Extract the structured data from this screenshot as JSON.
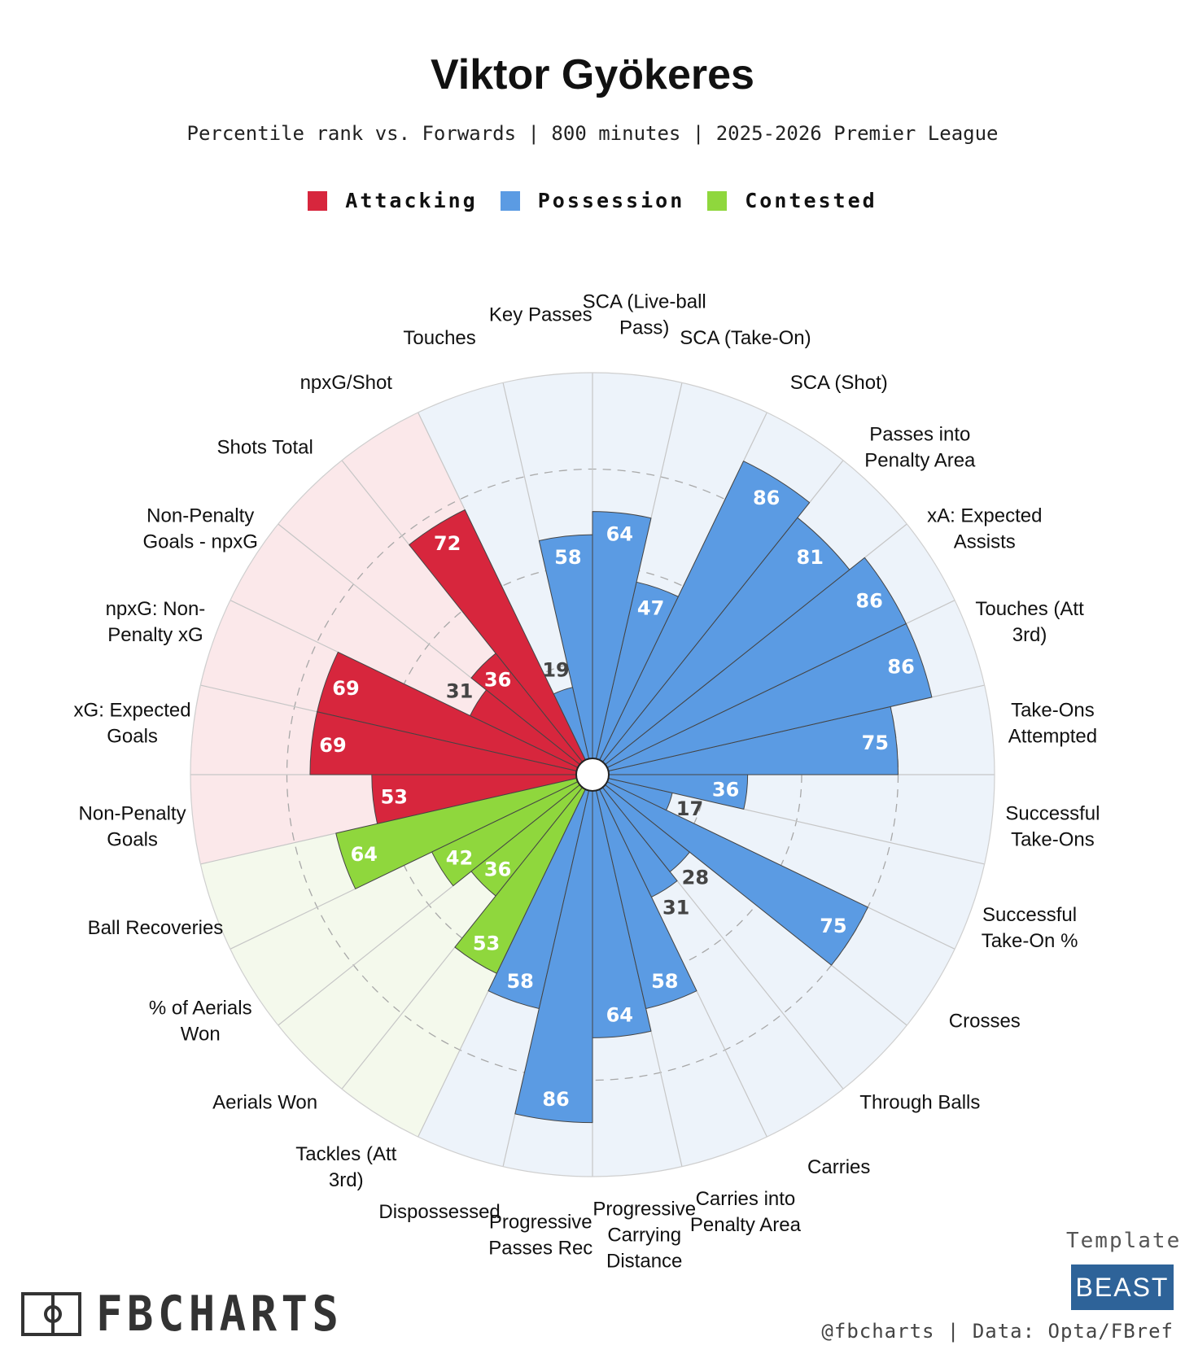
{
  "header": {
    "title": "Viktor Gyökeres",
    "subtitle": "Percentile rank vs. Forwards | 800 minutes | 2025-2026 Premier League"
  },
  "legend": [
    {
      "label": "Attacking",
      "color": "#d7263d"
    },
    {
      "label": "Possession",
      "color": "#5b9be3"
    },
    {
      "label": "Contested",
      "color": "#8fd73d"
    }
  ],
  "chart_data": {
    "type": "polar-bar",
    "title": "Viktor Gyökeres",
    "subtitle": "Percentile rank vs. Forwards | 800 minutes | 2025-2026 Premier League",
    "rlim": [
      0,
      100
    ],
    "gridlines": [
      25,
      50,
      75
    ],
    "categories": [
      {
        "name": "Attacking",
        "color": "#d7263d",
        "background": "#fbe8ea"
      },
      {
        "name": "Possession",
        "color": "#5b9be3",
        "background": "#edf3fa"
      },
      {
        "name": "Contested",
        "color": "#8fd73d",
        "background": "#f4f9ec"
      }
    ],
    "metrics": [
      {
        "label": "Take-Ons Attempted",
        "value": 75,
        "category": "Possession"
      },
      {
        "label": "Touches (Att 3rd)",
        "value": 86,
        "category": "Possession"
      },
      {
        "label": "xA: Expected Assists",
        "value": 86,
        "category": "Possession"
      },
      {
        "label": "Passes into Penalty Area",
        "value": 81,
        "category": "Possession"
      },
      {
        "label": "SCA (Shot)",
        "value": 86,
        "category": "Possession"
      },
      {
        "label": "SCA (Take-On)",
        "value": 47,
        "category": "Possession"
      },
      {
        "label": "SCA (Live-ball Pass)",
        "value": 64,
        "category": "Possession"
      },
      {
        "label": "Key Passes",
        "value": 58,
        "category": "Possession"
      },
      {
        "label": "Touches",
        "value": 19,
        "category": "Possession"
      },
      {
        "label": "npxG/Shot",
        "value": 72,
        "category": "Attacking"
      },
      {
        "label": "Shots Total",
        "value": 36,
        "category": "Attacking"
      },
      {
        "label": "Non-Penalty Goals - npxG",
        "value": 31,
        "category": "Attacking"
      },
      {
        "label": "npxG: Non-Penalty xG",
        "value": 69,
        "category": "Attacking"
      },
      {
        "label": "xG: Expected Goals",
        "value": 69,
        "category": "Attacking"
      },
      {
        "label": "Non-Penalty Goals",
        "value": 53,
        "category": "Attacking"
      },
      {
        "label": "Ball Recoveries",
        "value": 64,
        "category": "Contested"
      },
      {
        "label": "% of Aerials Won",
        "value": 42,
        "category": "Contested"
      },
      {
        "label": "Aerials Won",
        "value": 36,
        "category": "Contested"
      },
      {
        "label": "Tackles (Att 3rd)",
        "value": 53,
        "category": "Contested"
      },
      {
        "label": "Dispossessed",
        "value": 58,
        "category": "Possession"
      },
      {
        "label": "Progressive Passes Rec",
        "value": 86,
        "category": "Possession"
      },
      {
        "label": "Progressive Carrying Distance",
        "value": 64,
        "category": "Possession"
      },
      {
        "label": "Carries into Penalty Area",
        "value": 58,
        "category": "Possession"
      },
      {
        "label": "Carries",
        "value": 31,
        "category": "Possession"
      },
      {
        "label": "Through Balls",
        "value": 28,
        "category": "Possession"
      },
      {
        "label": "Crosses",
        "value": 75,
        "category": "Possession"
      },
      {
        "label": "Successful Take-On %",
        "value": 17,
        "category": "Possession"
      },
      {
        "label": "Successful Take-Ons",
        "value": 36,
        "category": "Possession"
      }
    ],
    "label_display": [
      [
        "Take-Ons",
        "Attempted"
      ],
      [
        "Touches (Att",
        "3rd)"
      ],
      [
        "xA: Expected",
        "Assists"
      ],
      [
        "Passes into",
        "Penalty Area"
      ],
      [
        "SCA (Shot)"
      ],
      [
        "SCA (Take-On)"
      ],
      [
        "SCA (Live-ball",
        "Pass)"
      ],
      [
        "Key Passes"
      ],
      [
        "Touches"
      ],
      [
        "npxG/Shot"
      ],
      [
        "Shots Total"
      ],
      [
        "Non-Penalty",
        "Goals - npxG"
      ],
      [
        "npxG: Non-",
        "Penalty xG"
      ],
      [
        "xG: Expected",
        "Goals"
      ],
      [
        "Non-Penalty",
        "Goals"
      ],
      [
        "Ball Recoveries"
      ],
      [
        "% of Aerials",
        "Won"
      ],
      [
        "Aerials Won"
      ],
      [
        "Tackles (Att",
        "3rd)"
      ],
      [
        "Dispossessed"
      ],
      [
        "Progressive",
        "Passes Rec"
      ],
      [
        "Progressive",
        "Carrying",
        "Distance"
      ],
      [
        "Carries into",
        "Penalty Area"
      ],
      [
        "Carries"
      ],
      [
        "Through Balls"
      ],
      [
        "Crosses"
      ],
      [
        "Successful",
        "Take-On %"
      ],
      [
        "Successful",
        "Take-Ons"
      ]
    ]
  },
  "footer": {
    "logo_text": "FBCHARTS",
    "template_label": "Template",
    "template_badge": "BEAST",
    "credit": "@fbcharts | Data: Opta/FBref"
  },
  "icons": {
    "logo": "pitch-icon"
  }
}
